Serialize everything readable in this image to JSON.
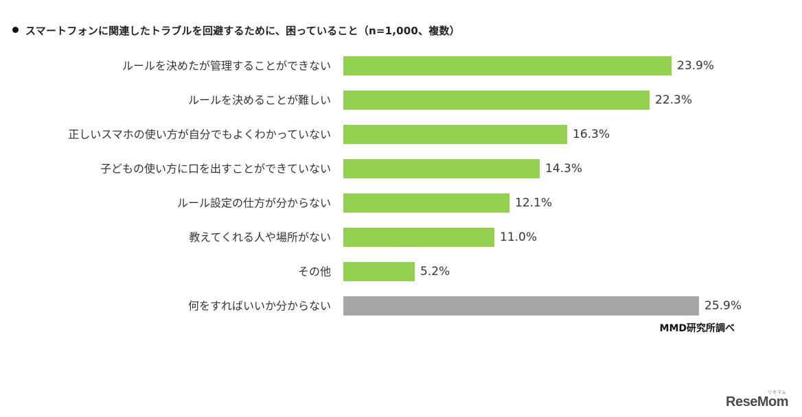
{
  "chart_data": {
    "type": "bar",
    "orientation": "horizontal",
    "title": "スマートフォンに関連したトラブルを回避するために、困っていること（n=1,000、複数）",
    "categories": [
      "ルールを決めたが管理することができない",
      "ルールを決めることが難しい",
      "正しいスマホの使い方が自分でもよくわかっていない",
      "子どもの使い方に口を出すことができていない",
      "ルール設定の仕方が分からない",
      "教えてくれる人や場所がない",
      "その他",
      "何をすればいいか分からない"
    ],
    "values": [
      23.9,
      22.3,
      16.3,
      14.3,
      12.1,
      11.0,
      5.2,
      25.9
    ],
    "value_labels": [
      "23.9%",
      "22.3%",
      "16.3%",
      "14.3%",
      "12.1%",
      "11.0%",
      "5.2%",
      "25.9%"
    ],
    "bar_colors": [
      "#92d050",
      "#92d050",
      "#92d050",
      "#92d050",
      "#92d050",
      "#92d050",
      "#92d050",
      "#a6a6a6"
    ],
    "unit": "%",
    "xlim": [
      0,
      27
    ],
    "grid": false,
    "legend": "none"
  },
  "source": "MMD研究所調べ",
  "watermark": {
    "text": "ReseMom",
    "sub": "リセマム"
  }
}
